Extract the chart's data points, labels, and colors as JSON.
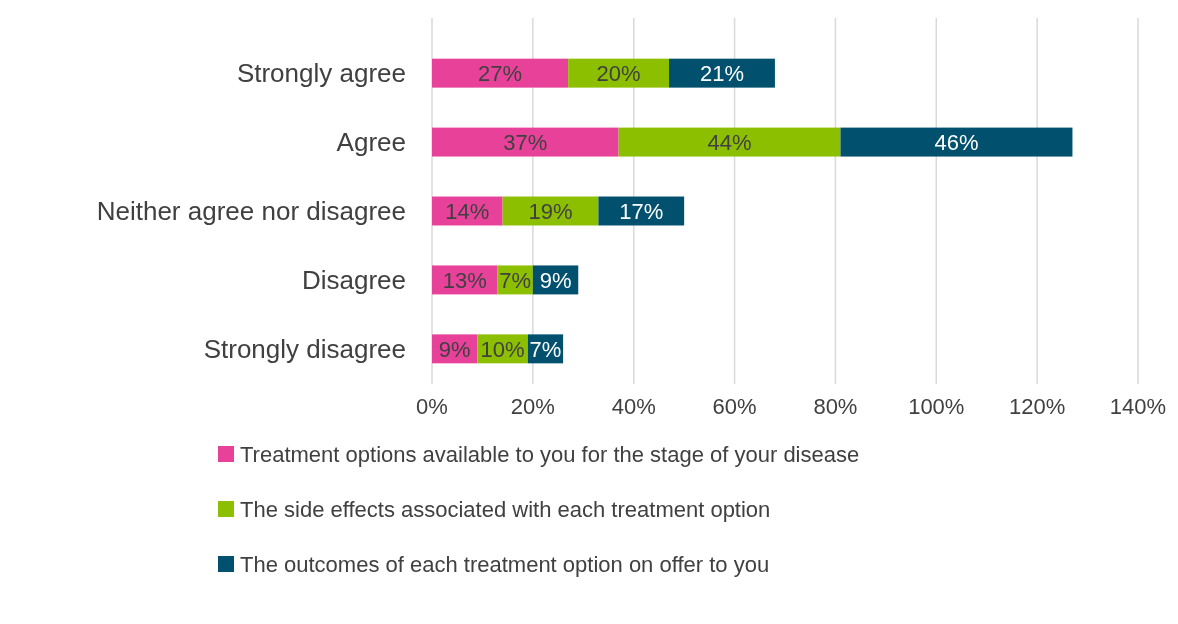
{
  "chart_data": {
    "type": "bar",
    "orientation": "horizontal",
    "stacked": true,
    "categories": [
      "Strongly agree",
      "Agree",
      "Neither agree nor disagree",
      "Disagree",
      "Strongly disagree"
    ],
    "series": [
      {
        "name": "Treatment options available to you for the stage of your disease",
        "color": "#e8419a",
        "values": [
          27,
          37,
          14,
          13,
          9
        ],
        "value_labels": [
          "27%",
          "37%",
          "14%",
          "13%",
          "9%"
        ]
      },
      {
        "name": "The side effects associated with each treatment option",
        "color": "#8cbf00",
        "values": [
          20,
          44,
          19,
          7,
          10
        ],
        "value_labels": [
          "20%",
          "44%",
          "19%",
          "7%",
          "10%"
        ]
      },
      {
        "name": "The outcomes of each treatment option on offer to you",
        "color": "#00506e",
        "values": [
          21,
          46,
          17,
          9,
          7
        ],
        "value_labels": [
          "21%",
          "46%",
          "17%",
          "9%",
          "7%"
        ]
      }
    ],
    "xlim": [
      0,
      140
    ],
    "xticks": [
      {
        "value": 0,
        "label": "0%"
      },
      {
        "value": 20,
        "label": "20%"
      },
      {
        "value": 40,
        "label": "40%"
      },
      {
        "value": 60,
        "label": "60%"
      },
      {
        "value": 80,
        "label": "80%"
      },
      {
        "value": 100,
        "label": "100%"
      },
      {
        "value": 120,
        "label": "120%"
      },
      {
        "value": 140,
        "label": "140%"
      }
    ],
    "grid": "x",
    "legend": "bottom"
  }
}
